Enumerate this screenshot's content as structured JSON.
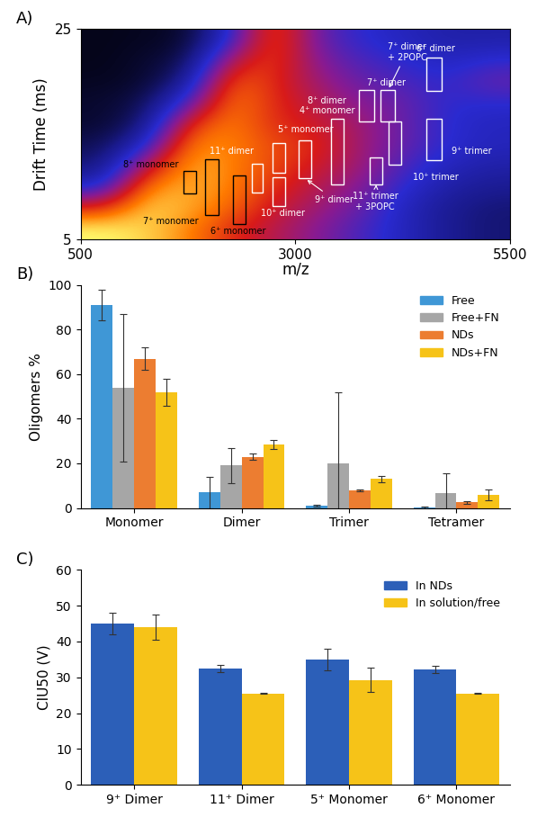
{
  "chart_data": [
    {
      "type": "heatmap",
      "title": "A)",
      "x_label": "m/z",
      "y_label": "Drift Time (ms)",
      "xlim": [
        500,
        5500
      ],
      "ylim": [
        5,
        25
      ],
      "xticks": [
        500,
        3000,
        5500
      ],
      "yticks": [
        5,
        25
      ],
      "cells": [
        [
          1.0,
          0.95,
          0.85,
          0.7,
          0.6,
          0.5,
          0.4,
          0.3,
          0.2,
          0.15
        ],
        [
          0.7,
          0.95,
          0.9,
          0.8,
          0.65,
          0.55,
          0.45,
          0.3,
          0.2,
          0.15
        ],
        [
          0.3,
          0.85,
          0.9,
          0.85,
          0.7,
          0.6,
          0.5,
          0.35,
          0.25,
          0.2
        ],
        [
          0.15,
          0.6,
          0.9,
          0.85,
          0.75,
          0.65,
          0.55,
          0.4,
          0.3,
          0.25
        ],
        [
          0.1,
          0.3,
          0.85,
          0.85,
          0.75,
          0.7,
          0.55,
          0.45,
          0.35,
          0.3
        ],
        [
          0.05,
          0.15,
          0.7,
          0.85,
          0.7,
          0.65,
          0.55,
          0.45,
          0.35,
          0.3
        ],
        [
          0.05,
          0.1,
          0.4,
          0.85,
          0.7,
          0.6,
          0.5,
          0.45,
          0.35,
          0.35
        ],
        [
          0.03,
          0.05,
          0.2,
          0.8,
          0.7,
          0.55,
          0.45,
          0.4,
          0.35,
          0.45
        ],
        [
          0.02,
          0.05,
          0.1,
          0.6,
          0.75,
          0.5,
          0.4,
          0.35,
          0.3,
          0.35
        ],
        [
          0.02,
          0.03,
          0.05,
          0.35,
          0.8,
          0.45,
          0.35,
          0.3,
          0.25,
          0.25
        ]
      ],
      "boxes": [
        {
          "x": [
            1703,
            1849
          ],
          "y": [
            9.4,
            11.5
          ],
          "color": "black"
        },
        {
          "x": [
            1954,
            2111
          ],
          "y": [
            7.3,
            12.6
          ],
          "color": "black"
        },
        {
          "x": [
            2278,
            2425
          ],
          "y": [
            6.5,
            11.1
          ],
          "color": "black"
        },
        {
          "x": [
            2498,
            2623
          ],
          "y": [
            9.5,
            12.2
          ],
          "color": "white"
        },
        {
          "x": [
            2738,
            2885
          ],
          "y": [
            11.3,
            14.2
          ],
          "color": "white"
        },
        {
          "x": [
            2738,
            2885
          ],
          "y": [
            8.2,
            10.9
          ],
          "color": "white"
        },
        {
          "x": [
            3041,
            3187
          ],
          "y": [
            10.8,
            14.4
          ],
          "color": "white"
        },
        {
          "x": [
            3418,
            3565
          ],
          "y": [
            10.2,
            16.5
          ],
          "color": "white"
        },
        {
          "x": [
            3743,
            3920
          ],
          "y": [
            16.2,
            19.2
          ],
          "color": "white"
        },
        {
          "x": [
            3994,
            4161
          ],
          "y": [
            16.2,
            19.2
          ],
          "color": "white"
        },
        {
          "x": [
            3868,
            4015
          ],
          "y": [
            10.2,
            12.8
          ],
          "color": "white"
        },
        {
          "x": [
            4088,
            4234
          ],
          "y": [
            12.1,
            16.2
          ],
          "color": "white"
        },
        {
          "x": [
            4527,
            4705
          ],
          "y": [
            12.5,
            16.5
          ],
          "color": "white"
        },
        {
          "x": [
            4527,
            4705
          ],
          "y": [
            19.1,
            22.3
          ],
          "color": "white"
        }
      ],
      "annotations": [
        {
          "text": "8⁺ monomer",
          "xy": [
            1316,
            12.1
          ],
          "color": "black"
        },
        {
          "text": "7⁺ monomer",
          "xy": [
            1546,
            6.7
          ],
          "color": "black"
        },
        {
          "text": "6⁺ monomer",
          "xy": [
            2330,
            5.8
          ],
          "color": "black"
        },
        {
          "text": "11⁺ dimer",
          "xy": [
            2257,
            13.4
          ],
          "color": "white"
        },
        {
          "text": "5⁺ monomer",
          "xy": [
            3115,
            15.4
          ],
          "color": "white"
        },
        {
          "text": "10⁺ dimer",
          "xy": [
            2853,
            7.5
          ],
          "color": "white"
        },
        {
          "text": "9⁺ dimer",
          "xy": [
            3450,
            8.8
          ],
          "color": "white",
          "arrow_to": [
            3114,
            10.8
          ]
        },
        {
          "text": "8⁺ dimer\n4⁺ monomer",
          "xy": [
            3370,
            17.7
          ],
          "color": "white"
        },
        {
          "text": "7⁺ dimer\n+ 2POPC",
          "xy": [
            4300,
            22.8
          ],
          "color": "white",
          "arrow_to": [
            4078,
            19.2
          ]
        },
        {
          "text": "7⁺ dimer",
          "xy": [
            4056,
            19.9
          ],
          "color": "white"
        },
        {
          "text": "6⁺ dimer",
          "xy": [
            4632,
            23.1
          ],
          "color": "white"
        },
        {
          "text": "11⁺ trimer\n+ 3POPC",
          "xy": [
            3931,
            8.6
          ],
          "color": "white",
          "arrow_to": [
            3940,
            10.2
          ]
        },
        {
          "text": "10⁺ trimer",
          "xy": [
            4632,
            10.9
          ],
          "color": "white"
        },
        {
          "text": "9⁺ trimer",
          "xy": [
            5050,
            13.4
          ],
          "color": "white"
        }
      ]
    },
    {
      "type": "bar",
      "title": "B)",
      "y_label": "Oligomers %",
      "categories": [
        "Monomer",
        "Dimer",
        "Trimer",
        "Tetramer"
      ],
      "ylim": [
        0,
        100
      ],
      "yticks": [
        0,
        20,
        40,
        60,
        80,
        100
      ],
      "legend": "upper right",
      "series": [
        {
          "name": "Free",
          "color": "#3f97d6",
          "values": [
            91,
            7,
            1,
            0.3
          ],
          "errors": [
            7,
            7,
            0.5,
            0.3
          ]
        },
        {
          "name": "Free+FN",
          "color": "#a6a6a6",
          "values": [
            54,
            19,
            20,
            6.5
          ],
          "errors": [
            33,
            8,
            32,
            9
          ]
        },
        {
          "name": "NDs",
          "color": "#ec7d31",
          "values": [
            67,
            23,
            8,
            2.5
          ],
          "errors": [
            5,
            1.5,
            0.5,
            0.5
          ]
        },
        {
          "name": "NDs+FN",
          "color": "#f6c318",
          "values": [
            52,
            28.5,
            13,
            6
          ],
          "errors": [
            6,
            2,
            1.5,
            2.5
          ]
        }
      ]
    },
    {
      "type": "bar",
      "title": "C)",
      "y_label": "CIU50 (V)",
      "categories": [
        "9⁺ Dimer",
        "11⁺ Dimer",
        "5⁺ Monomer",
        "6⁺ Monomer"
      ],
      "ylim": [
        0,
        60
      ],
      "yticks": [
        0,
        10,
        20,
        30,
        40,
        50,
        60
      ],
      "legend": "upper right",
      "series": [
        {
          "name": "In NDs",
          "color": "#2c5fb8",
          "values": [
            45,
            32.5,
            35,
            32.3
          ],
          "errors": [
            3,
            1,
            3,
            1
          ]
        },
        {
          "name": "In solution/free",
          "color": "#f6c318",
          "values": [
            44,
            25.5,
            29.3,
            25.5
          ],
          "errors": [
            3.5,
            0.2,
            3.3,
            0.2
          ]
        }
      ]
    }
  ]
}
